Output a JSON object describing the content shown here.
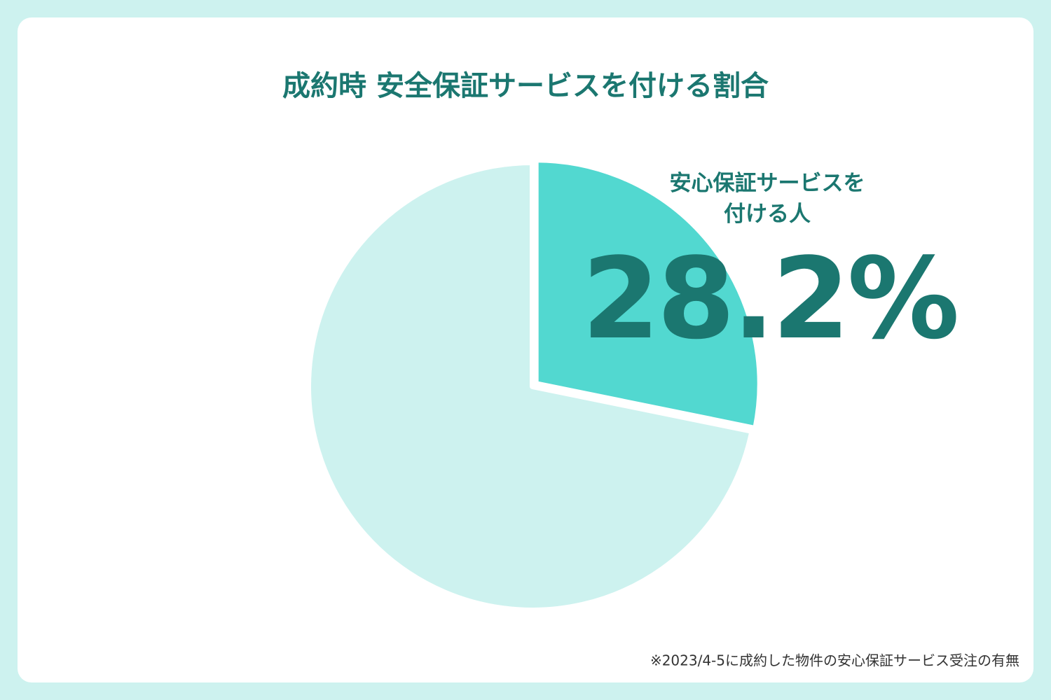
{
  "chart_data": {
    "type": "pie",
    "title": "成約時 安全保証サービスを付ける割合",
    "categories": [
      "安心保証サービスを\n付ける人",
      null
    ],
    "values": [
      28.2,
      71.8
    ],
    "value_labels": [
      "28.2%",
      null
    ],
    "colors": [
      "#52d8d0",
      "#cdf2ef"
    ],
    "footnote": "※2023/4-5に成約した物件の安心保証サービス受注の有無"
  }
}
